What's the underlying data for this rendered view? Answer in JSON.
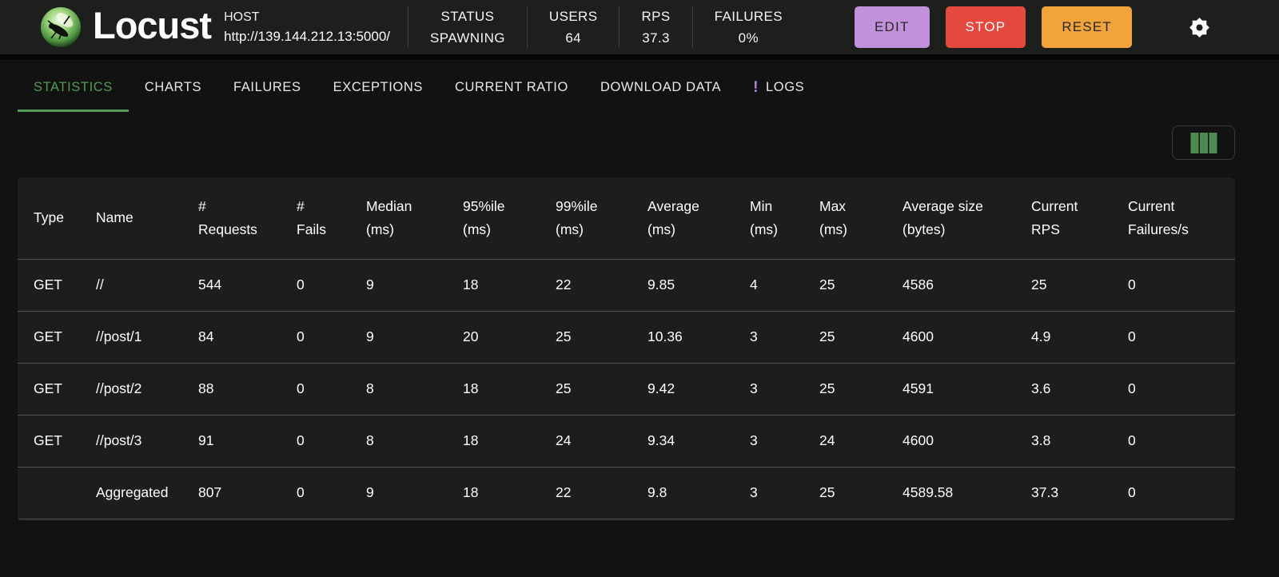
{
  "header": {
    "app_name": "Locust",
    "host_label": "HOST",
    "host_url": "http://139.144.212.13:5000/",
    "stats": [
      {
        "id": "status",
        "label": "STATUS",
        "value": "SPAWNING"
      },
      {
        "id": "users",
        "label": "USERS",
        "value": "64"
      },
      {
        "id": "rps",
        "label": "RPS",
        "value": "37.3"
      },
      {
        "id": "failures",
        "label": "FAILURES",
        "value": "0%"
      }
    ],
    "buttons": [
      {
        "id": "edit",
        "label": "EDIT",
        "bg": "#c391dc",
        "fg": "#272727"
      },
      {
        "id": "stop",
        "label": "STOP",
        "bg": "#e5493d",
        "fg": "#ffffff"
      },
      {
        "id": "reset",
        "label": "RESET",
        "bg": "#f2a33c",
        "fg": "#272727"
      }
    ]
  },
  "nav": {
    "tabs": [
      {
        "id": "statistics",
        "label": "STATISTICS",
        "active": true
      },
      {
        "id": "charts",
        "label": "CHARTS"
      },
      {
        "id": "failures",
        "label": "FAILURES"
      },
      {
        "id": "exceptions",
        "label": "EXCEPTIONS"
      },
      {
        "id": "current-ratio",
        "label": "CURRENT RATIO"
      },
      {
        "id": "download-data",
        "label": "DOWNLOAD DATA"
      },
      {
        "id": "logs",
        "label": "LOGS",
        "badge": "!"
      }
    ]
  },
  "table": {
    "columns": [
      {
        "id": "type",
        "lines": [
          "Type"
        ]
      },
      {
        "id": "name",
        "lines": [
          "Name"
        ]
      },
      {
        "id": "requests",
        "lines": [
          "#",
          "Requests"
        ]
      },
      {
        "id": "fails",
        "lines": [
          "#",
          "Fails"
        ]
      },
      {
        "id": "median",
        "lines": [
          "Median",
          "(ms)"
        ]
      },
      {
        "id": "p95",
        "lines": [
          "95%ile",
          "(ms)"
        ]
      },
      {
        "id": "p99",
        "lines": [
          "99%ile",
          "(ms)"
        ]
      },
      {
        "id": "average",
        "lines": [
          "Average",
          "(ms)"
        ]
      },
      {
        "id": "min",
        "lines": [
          "Min",
          "(ms)"
        ]
      },
      {
        "id": "max",
        "lines": [
          "Max",
          "(ms)"
        ]
      },
      {
        "id": "avg-size",
        "lines": [
          "Average size",
          "(bytes)"
        ]
      },
      {
        "id": "current-rps",
        "lines": [
          "Current",
          "RPS"
        ]
      },
      {
        "id": "current-failures",
        "lines": [
          "Current",
          "Failures/s"
        ]
      }
    ],
    "rows": [
      [
        "GET",
        "//",
        "544",
        "0",
        "9",
        "18",
        "22",
        "9.85",
        "4",
        "25",
        "4586",
        "25",
        "0"
      ],
      [
        "GET",
        "//post/1",
        "84",
        "0",
        "9",
        "20",
        "25",
        "10.36",
        "3",
        "25",
        "4600",
        "4.9",
        "0"
      ],
      [
        "GET",
        "//post/2",
        "88",
        "0",
        "8",
        "18",
        "25",
        "9.42",
        "3",
        "25",
        "4591",
        "3.6",
        "0"
      ],
      [
        "GET",
        "//post/3",
        "91",
        "0",
        "8",
        "18",
        "24",
        "9.34",
        "3",
        "24",
        "4600",
        "3.8",
        "0"
      ],
      [
        "",
        "Aggregated",
        "807",
        "0",
        "9",
        "18",
        "22",
        "9.8",
        "3",
        "25",
        "4589.58",
        "37.3",
        "0"
      ]
    ]
  },
  "colors": {
    "accent_green": "#539a57",
    "edit_button": "#c391dc",
    "stop_button": "#e5493d",
    "reset_button": "#f2a33c",
    "logs_badge": "#b48ad8",
    "columns_icon": "#4d8b51",
    "header_bg": "#1d1f1d",
    "panel_bg": "#1d1d1d"
  }
}
